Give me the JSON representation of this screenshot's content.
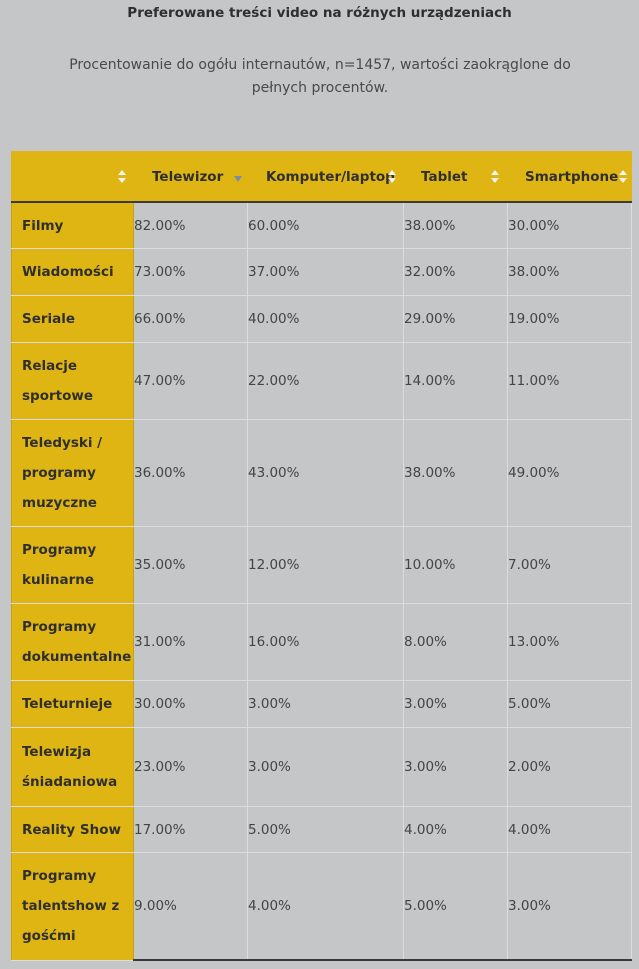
{
  "header": {
    "title": "Preferowane treści video na różnych urządzeniach",
    "subtitle": "Procentowanie do ogółu internautów, n=1457, wartości zaokrąglone do pełnych procentów."
  },
  "table": {
    "columns": [
      "",
      "Telewizor",
      "Komputer/laptop",
      "Tablet",
      "Smartphone"
    ],
    "sorted_column": "Telewizor",
    "sort_direction": "descending",
    "rows": [
      {
        "label": "Filmy",
        "values": [
          "82.00%",
          "60.00%",
          "38.00%",
          "30.00%"
        ]
      },
      {
        "label": "Wiadomości",
        "values": [
          "73.00%",
          "37.00%",
          "32.00%",
          "38.00%"
        ]
      },
      {
        "label": "Seriale",
        "values": [
          "66.00%",
          "40.00%",
          "29.00%",
          "19.00%"
        ]
      },
      {
        "label": "Relacje sportowe",
        "values": [
          "47.00%",
          "22.00%",
          "14.00%",
          "11.00%"
        ]
      },
      {
        "label": "Teledyski / programy muzyczne",
        "values": [
          "36.00%",
          "43.00%",
          "38.00%",
          "49.00%"
        ]
      },
      {
        "label": "Programy kulinarne",
        "values": [
          "35.00%",
          "12.00%",
          "10.00%",
          "7.00%"
        ]
      },
      {
        "label": "Programy dokumentalne",
        "values": [
          "31.00%",
          "16.00%",
          "8.00%",
          "13.00%"
        ]
      },
      {
        "label": "Teleturnieje",
        "values": [
          "30.00%",
          "3.00%",
          "3.00%",
          "5.00%"
        ]
      },
      {
        "label": "Telewizja śniadaniowa",
        "values": [
          "23.00%",
          "3.00%",
          "3.00%",
          "2.00%"
        ]
      },
      {
        "label": "Reality Show",
        "values": [
          "17.00%",
          "5.00%",
          "4.00%",
          "4.00%"
        ]
      },
      {
        "label": "Programy talentshow z gośćmi",
        "values": [
          "9.00%",
          "4.00%",
          "5.00%",
          "3.00%"
        ]
      }
    ]
  },
  "colors": {
    "header_bg": "#dfb514",
    "page_bg": "#c4c6c8",
    "sort_active": "#7b8aa8"
  },
  "chart_data": {
    "type": "table",
    "title": "Preferowane treści video na różnych urządzeniach",
    "subtitle": "Procentowanie do ogółu internautów, n=1457, wartości zaokrąglone do pełnych procentów.",
    "categories": [
      "Filmy",
      "Wiadomości",
      "Seriale",
      "Relacje sportowe",
      "Teledyski / programy muzyczne",
      "Programy kulinarne",
      "Programy dokumentalne",
      "Teleturnieje",
      "Telewizja śniadaniowa",
      "Reality Show",
      "Programy talentshow z gośćmi"
    ],
    "series": [
      {
        "name": "Telewizor",
        "values": [
          82,
          73,
          66,
          47,
          36,
          35,
          31,
          30,
          23,
          17,
          9
        ]
      },
      {
        "name": "Komputer/laptop",
        "values": [
          60,
          37,
          40,
          22,
          43,
          12,
          16,
          3,
          3,
          5,
          4
        ]
      },
      {
        "name": "Tablet",
        "values": [
          38,
          32,
          29,
          14,
          38,
          10,
          8,
          3,
          3,
          4,
          5
        ]
      },
      {
        "name": "Smartphone",
        "values": [
          30,
          38,
          19,
          11,
          49,
          7,
          13,
          5,
          2,
          4,
          3
        ]
      }
    ],
    "unit": "%"
  }
}
